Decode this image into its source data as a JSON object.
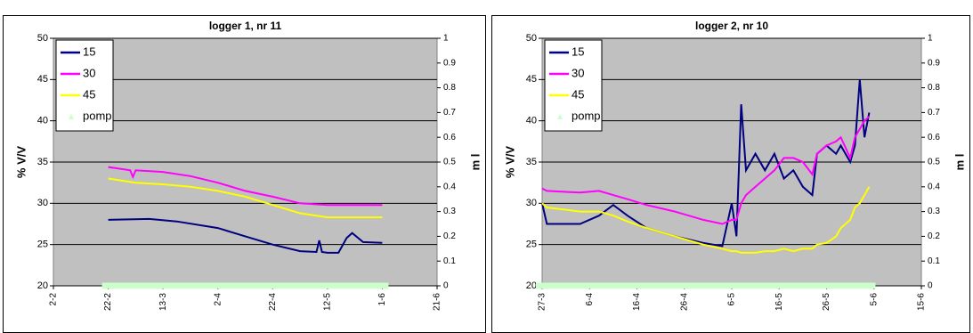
{
  "chart_data": [
    {
      "type": "line",
      "title": "logger 1, nr 11",
      "ylabel": "% V/V",
      "y2label": "m l",
      "xlim": [
        0,
        140
      ],
      "xticks": [
        {
          "value": 0,
          "label": "2-2"
        },
        {
          "value": 20,
          "label": "22-2"
        },
        {
          "value": 40,
          "label": "13-3"
        },
        {
          "value": 60,
          "label": "2-4"
        },
        {
          "value": 80,
          "label": "22-4"
        },
        {
          "value": 100,
          "label": "12-5"
        },
        {
          "value": 120,
          "label": "1-6"
        },
        {
          "value": 140,
          "label": "21-6"
        }
      ],
      "ylim": [
        20,
        50
      ],
      "yticks": [
        20,
        25,
        30,
        35,
        40,
        45,
        50
      ],
      "y2lim": [
        0,
        1
      ],
      "y2ticks": [
        0,
        0.1,
        0.2,
        0.3,
        0.4,
        0.5,
        0.6,
        0.7,
        0.8,
        0.9,
        1
      ],
      "grid": true,
      "legend": "upper left",
      "series": [
        {
          "name": "15",
          "color": "#000080",
          "x": [
            20,
            35,
            45,
            60,
            70,
            80,
            90,
            96,
            97,
            98,
            100,
            104,
            107,
            109,
            113,
            120
          ],
          "values": [
            28,
            28.1,
            27.8,
            27,
            26,
            25,
            24.2,
            24.1,
            25.5,
            24.1,
            24,
            24,
            25.8,
            26.4,
            25.3,
            25.2
          ]
        },
        {
          "name": "30",
          "color": "#ff00ff",
          "x": [
            20,
            28,
            29,
            30,
            40,
            50,
            60,
            70,
            80,
            90,
            100,
            120
          ],
          "values": [
            34.4,
            34,
            33.2,
            34,
            33.8,
            33.3,
            32.5,
            31.5,
            30.8,
            30,
            29.8,
            29.8
          ]
        },
        {
          "name": "45",
          "color": "#ffff00",
          "x": [
            20,
            30,
            40,
            50,
            60,
            70,
            80,
            90,
            100,
            120
          ],
          "values": [
            33,
            32.5,
            32.3,
            32,
            31.5,
            30.8,
            29.8,
            28.8,
            28.3,
            28.3
          ]
        },
        {
          "name": "pomp",
          "color": "#ccffcc",
          "axis": "y2",
          "marker": "triangle",
          "x": [
            20,
            24,
            28,
            32,
            36,
            40,
            44,
            48,
            52,
            56,
            60,
            64,
            68,
            72,
            76,
            80,
            84,
            88,
            92,
            96,
            100,
            104,
            108,
            112,
            116,
            120
          ],
          "values": [
            0,
            0,
            0,
            0,
            0,
            0,
            0,
            0,
            0,
            0,
            0,
            0,
            0,
            0,
            0,
            0,
            0,
            0,
            0,
            0,
            0,
            0,
            0,
            0,
            0,
            0
          ]
        }
      ]
    },
    {
      "type": "line",
      "title": "logger 2, nr 10",
      "ylabel": "% V/V",
      "y2label": "m l",
      "xlim": [
        0,
        80
      ],
      "xticks": [
        {
          "value": 0,
          "label": "27-3"
        },
        {
          "value": 10,
          "label": "6-4"
        },
        {
          "value": 20,
          "label": "16-4"
        },
        {
          "value": 30,
          "label": "26-4"
        },
        {
          "value": 40,
          "label": "6-5"
        },
        {
          "value": 50,
          "label": "16-5"
        },
        {
          "value": 60,
          "label": "26-5"
        },
        {
          "value": 70,
          "label": "5-6"
        },
        {
          "value": 80,
          "label": "15-6"
        }
      ],
      "ylim": [
        20,
        50
      ],
      "yticks": [
        20,
        25,
        30,
        35,
        40,
        45,
        50
      ],
      "y2lim": [
        0,
        1
      ],
      "y2ticks": [
        0,
        0.1,
        0.2,
        0.3,
        0.4,
        0.5,
        0.6,
        0.7,
        0.8,
        0.9,
        1
      ],
      "grid": true,
      "legend": "upper left",
      "series": [
        {
          "name": "15",
          "color": "#000080",
          "x": [
            0,
            1,
            8,
            12,
            15,
            18,
            22,
            28,
            34,
            38,
            40,
            41,
            42,
            43,
            45,
            47,
            49,
            51,
            53,
            55,
            57,
            58,
            60,
            62,
            63,
            65,
            66,
            67,
            68,
            69
          ],
          "values": [
            30,
            27.5,
            27.5,
            28.5,
            29.8,
            28.5,
            27,
            26,
            25.2,
            24.8,
            30,
            26,
            42,
            34,
            36,
            34,
            36,
            33,
            34,
            32,
            31,
            36,
            37,
            36,
            37,
            35,
            37,
            45,
            38,
            41
          ]
        },
        {
          "name": "30",
          "color": "#ff00ff",
          "x": [
            0,
            1,
            8,
            12,
            15,
            18,
            22,
            28,
            34,
            38,
            40,
            41,
            42,
            43,
            45,
            47,
            49,
            51,
            53,
            55,
            57,
            58,
            60,
            62,
            63,
            65,
            66,
            67,
            68,
            69
          ],
          "values": [
            31.8,
            31.5,
            31.3,
            31.5,
            31,
            30.5,
            29.8,
            29,
            28,
            27.5,
            28,
            28,
            30,
            31,
            32,
            33,
            34,
            35.5,
            35.5,
            35,
            33.5,
            36,
            37,
            37.5,
            38,
            35.5,
            38,
            39,
            40,
            40.5
          ]
        },
        {
          "name": "45",
          "color": "#ffff00",
          "x": [
            0,
            1,
            8,
            12,
            15,
            18,
            22,
            28,
            34,
            38,
            40,
            41,
            42,
            43,
            45,
            47,
            49,
            51,
            53,
            55,
            57,
            58,
            60,
            62,
            63,
            65,
            66,
            67,
            68,
            69
          ],
          "values": [
            30,
            29.5,
            29,
            29,
            28.5,
            27.8,
            27,
            26,
            25,
            24.5,
            24.2,
            24.2,
            24,
            24,
            24,
            24.2,
            24.2,
            24.5,
            24.2,
            24.5,
            24.5,
            25,
            25.2,
            26,
            27,
            28,
            29.5,
            30,
            31,
            32
          ]
        },
        {
          "name": "pomp",
          "color": "#ccffcc",
          "axis": "y2",
          "marker": "triangle",
          "x": [
            0,
            2,
            4,
            6,
            8,
            10,
            12,
            14,
            16,
            18,
            20,
            22,
            24,
            26,
            28,
            30,
            32,
            34,
            36,
            38,
            40,
            42,
            44,
            46,
            48,
            50,
            52,
            54,
            56,
            58,
            60,
            62,
            64,
            66,
            68,
            69
          ],
          "values": [
            0,
            0,
            0,
            0,
            0,
            0,
            0,
            0,
            0,
            0,
            0,
            0,
            0,
            0,
            0,
            0,
            0,
            0,
            0,
            0,
            0,
            0,
            0,
            0,
            0,
            0,
            0,
            0,
            0,
            0,
            0,
            0,
            0,
            0,
            0,
            0
          ]
        }
      ]
    }
  ]
}
